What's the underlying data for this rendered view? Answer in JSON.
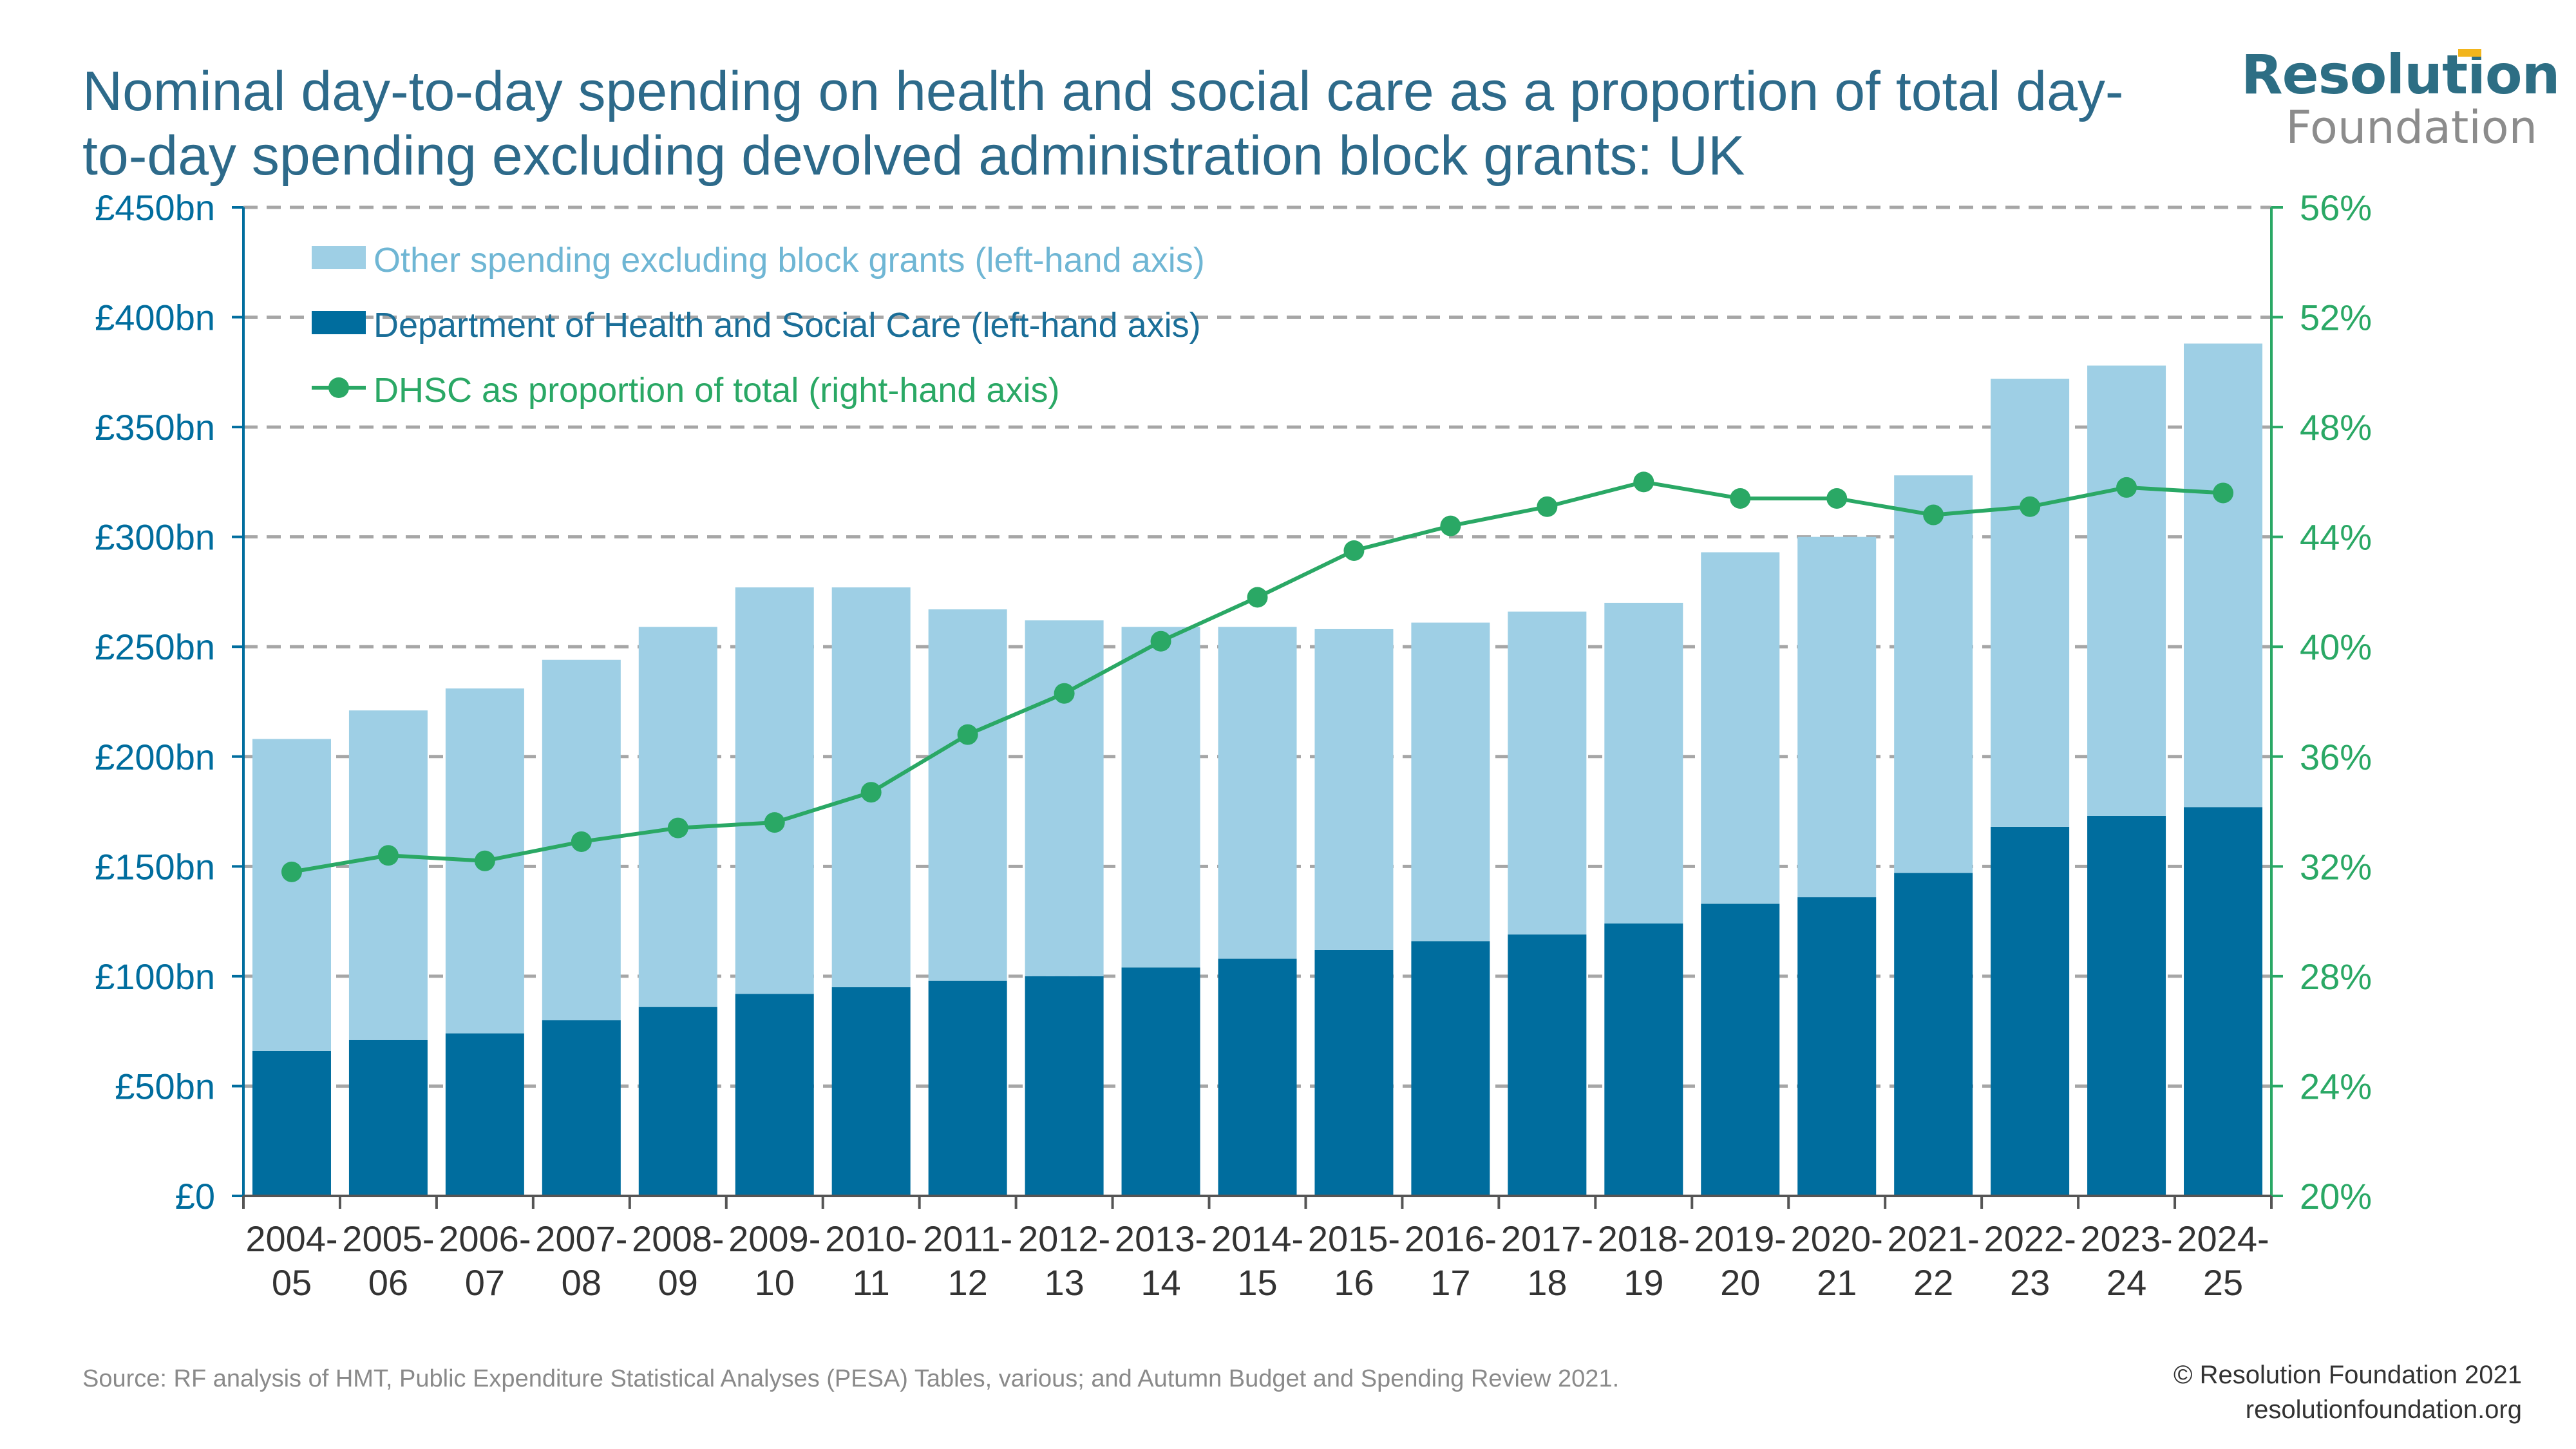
{
  "title": "Nominal day-to-day spending on health and social care as a proportion of total day-to-day spending excluding devolved administration block grants: UK",
  "logo": {
    "line1": "Resolution",
    "line2": "Foundation"
  },
  "source_note": "Source: RF analysis of HMT, Public Expenditure Statistical Analyses (PESA) Tables, various; and Autumn Budget and Spending Review 2021.",
  "copyright": {
    "line1": "© Resolution Foundation 2021",
    "line2": "resolutionfoundation.org"
  },
  "colors": {
    "other": "#9ecfe5",
    "dhsc": "#006d9e",
    "line": "#2aa865",
    "left_axis": "#006d9e",
    "right_axis": "#2aa865",
    "grid": "#a6a6a6",
    "title": "#2d6a8a"
  },
  "chart_data": {
    "type": "bar",
    "stacked": true,
    "categories": [
      "2004-05",
      "2005-06",
      "2006-07",
      "2007-08",
      "2008-09",
      "2009-10",
      "2010-11",
      "2011-12",
      "2012-13",
      "2013-14",
      "2014-15",
      "2015-16",
      "2016-17",
      "2017-18",
      "2018-19",
      "2019-20",
      "2020-21",
      "2021-22",
      "2022-23",
      "2023-24",
      "2024-25"
    ],
    "category_labels": [
      [
        "2004-",
        "05"
      ],
      [
        "2005-",
        "06"
      ],
      [
        "2006-",
        "07"
      ],
      [
        "2007-",
        "08"
      ],
      [
        "2008-",
        "09"
      ],
      [
        "2009-",
        "10"
      ],
      [
        "2010-",
        "11"
      ],
      [
        "2011-",
        "12"
      ],
      [
        "2012-",
        "13"
      ],
      [
        "2013-",
        "14"
      ],
      [
        "2014-",
        "15"
      ],
      [
        "2015-",
        "16"
      ],
      [
        "2016-",
        "17"
      ],
      [
        "2017-",
        "18"
      ],
      [
        "2018-",
        "19"
      ],
      [
        "2019-",
        "20"
      ],
      [
        "2020-",
        "21"
      ],
      [
        "2021-",
        "22"
      ],
      [
        "2022-",
        "23"
      ],
      [
        "2023-",
        "24"
      ],
      [
        "2024-",
        "25"
      ]
    ],
    "series": [
      {
        "name": "Department of Health and Social Care (left-hand axis)",
        "axis": "left",
        "values": [
          66,
          71,
          74,
          80,
          86,
          92,
          95,
          98,
          100,
          104,
          108,
          112,
          116,
          119,
          124,
          133,
          136,
          147,
          168,
          173,
          177
        ]
      },
      {
        "name": "Other spending excluding block grants (left-hand axis)",
        "axis": "left",
        "values": [
          142,
          150,
          157,
          164,
          173,
          185,
          182,
          169,
          162,
          155,
          151,
          146,
          145,
          147,
          146,
          160,
          164,
          181,
          204,
          205,
          211
        ]
      },
      {
        "name": "DHSC as proportion of total (right-hand axis)",
        "axis": "right",
        "type": "line",
        "values": [
          31.8,
          32.4,
          32.2,
          32.9,
          33.4,
          33.6,
          34.7,
          36.8,
          38.3,
          40.2,
          41.8,
          43.5,
          44.4,
          45.1,
          46.0,
          45.4,
          45.4,
          44.8,
          45.1,
          45.8,
          45.6
        ]
      }
    ],
    "legend_order": [
      1,
      0,
      2
    ],
    "y_left": {
      "lim": [
        0,
        450
      ],
      "ticks": [
        "£0",
        "£50bn",
        "£100bn",
        "£150bn",
        "£200bn",
        "£250bn",
        "£300bn",
        "£350bn",
        "£400bn",
        "£450bn"
      ]
    },
    "y_right": {
      "lim": [
        20,
        56
      ],
      "ticks": [
        "20%",
        "24%",
        "28%",
        "32%",
        "36%",
        "40%",
        "44%",
        "48%",
        "52%",
        "56%"
      ]
    },
    "grid": true,
    "legend_position": "top-left"
  }
}
